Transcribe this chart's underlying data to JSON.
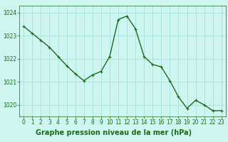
{
  "x": [
    0,
    1,
    2,
    3,
    4,
    5,
    6,
    7,
    8,
    9,
    10,
    11,
    12,
    13,
    14,
    15,
    16,
    17,
    18,
    19,
    20,
    21,
    22,
    23
  ],
  "y": [
    1023.4,
    1023.1,
    1022.8,
    1022.5,
    1022.1,
    1021.7,
    1021.35,
    1021.05,
    1021.3,
    1021.45,
    1022.1,
    1023.7,
    1023.85,
    1023.3,
    1022.1,
    1021.75,
    1021.65,
    1021.05,
    1020.35,
    1019.85,
    1020.2,
    1020.0,
    1019.75,
    1019.75
  ],
  "line_color": "#1a6b1a",
  "marker": "+",
  "marker_size": 3,
  "linewidth": 1.0,
  "bg_color": "#cef5f0",
  "grid_color": "#9dddd8",
  "xlabel": "Graphe pression niveau de la mer (hPa)",
  "xlabel_color": "#1a6b1a",
  "xlabel_bg": "#44bbbb",
  "tick_label_color": "#1a6b1a",
  "yticks": [
    1020,
    1021,
    1022,
    1023,
    1024
  ],
  "xticks": [
    0,
    1,
    2,
    3,
    4,
    5,
    6,
    7,
    8,
    9,
    10,
    11,
    12,
    13,
    14,
    15,
    16,
    17,
    18,
    19,
    20,
    21,
    22,
    23
  ],
  "ylim": [
    1019.5,
    1024.3
  ],
  "xlim": [
    -0.5,
    23.5
  ],
  "spine_color": "#1a6b1a",
  "tick_fontsize": 5.5,
  "xlabel_fontsize": 7.0
}
